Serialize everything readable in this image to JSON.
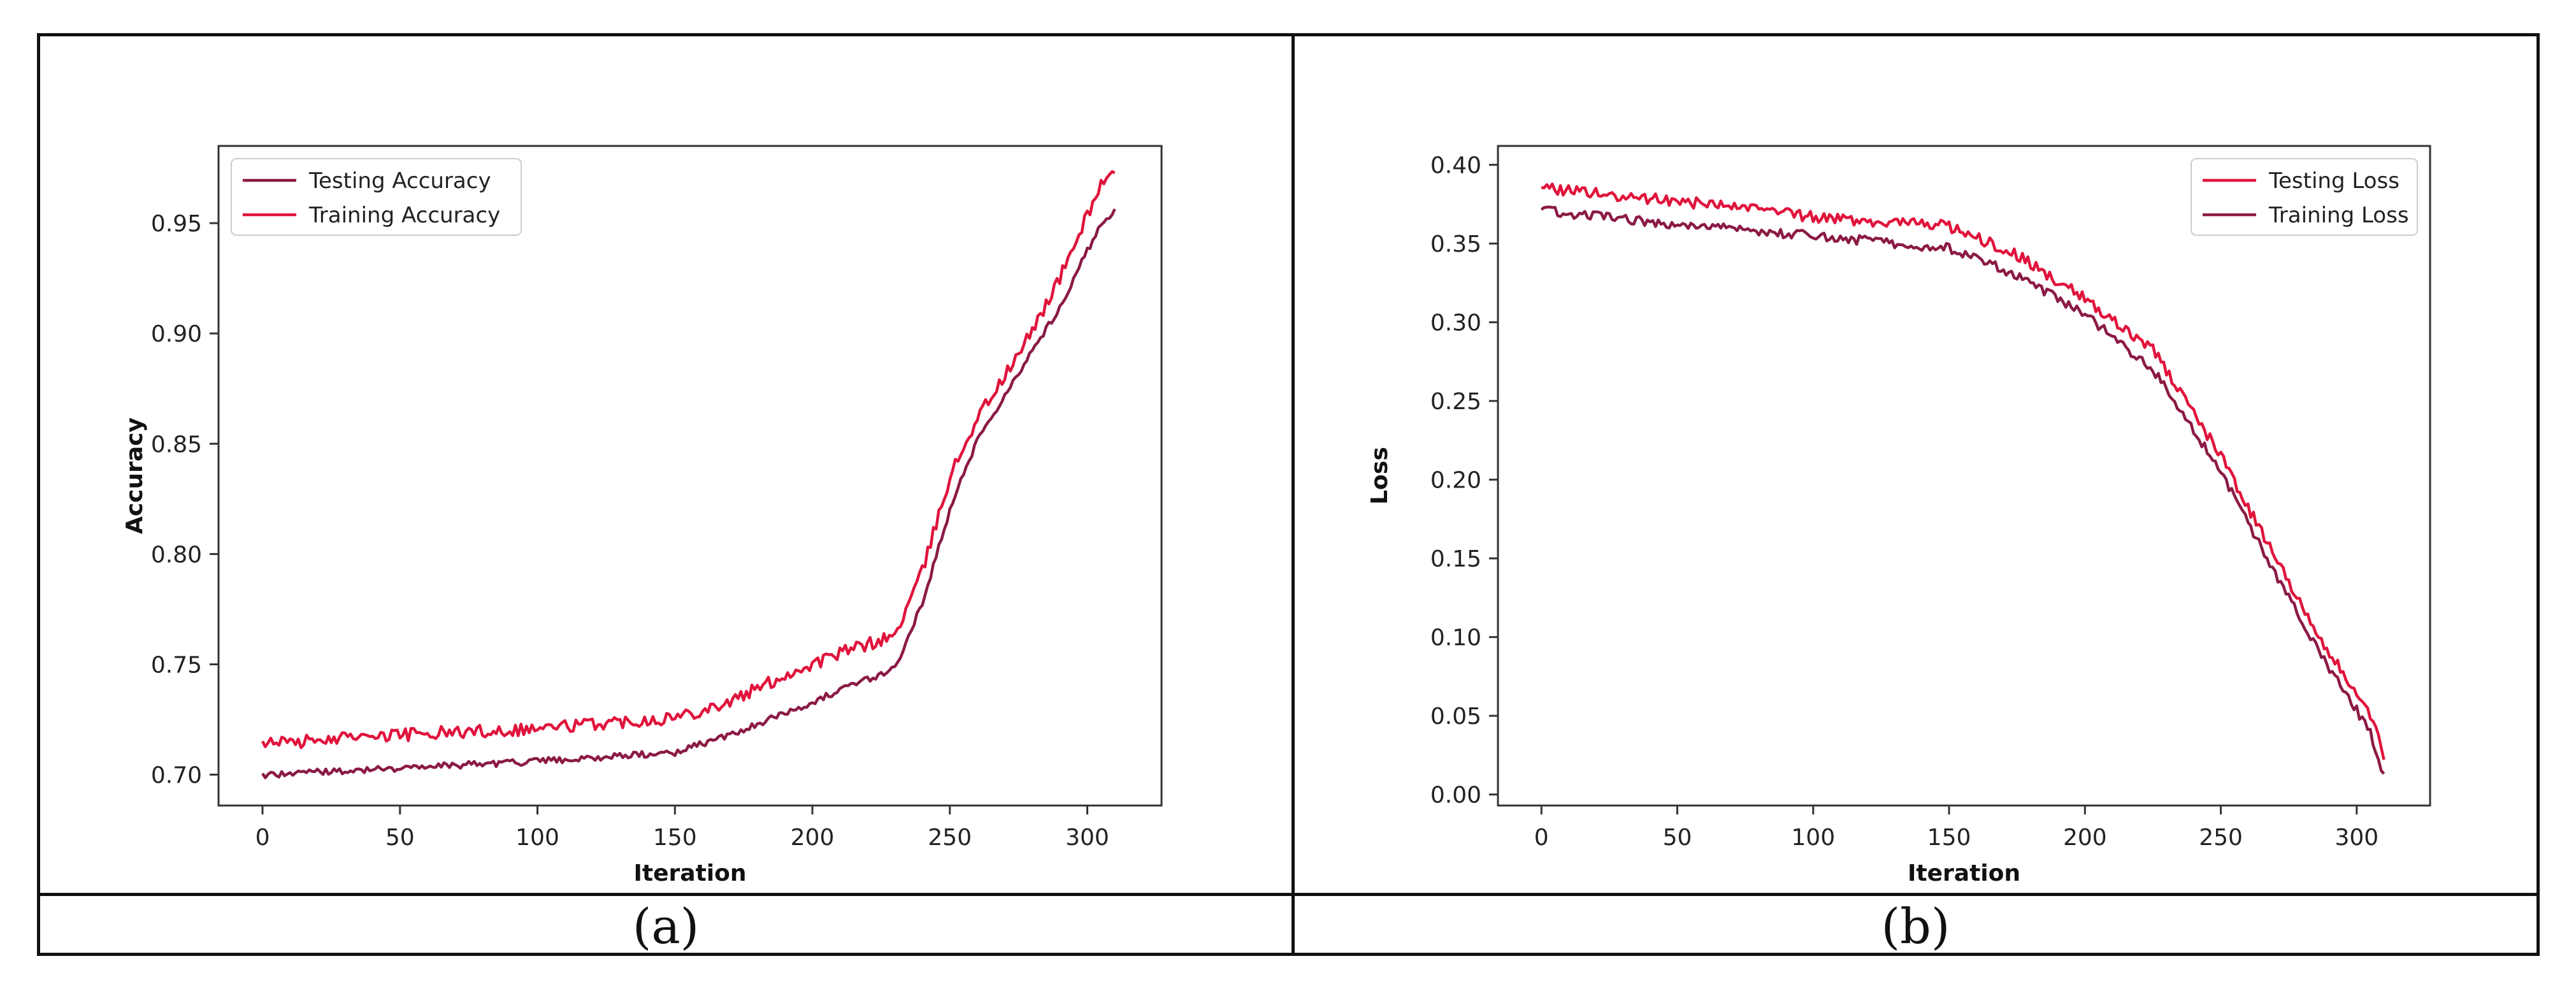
{
  "captions": [
    "(a)",
    "(b)"
  ],
  "chart_data": [
    {
      "type": "line",
      "title": "",
      "xlabel": "Iteration",
      "ylabel": "Accuracy",
      "xlim": [
        -16,
        327
      ],
      "ylim": [
        0.686,
        0.985
      ],
      "xticks": [
        0,
        50,
        100,
        150,
        200,
        250,
        300
      ],
      "yticks": [
        0.7,
        0.75,
        0.8,
        0.85,
        0.9,
        0.95
      ],
      "ytick_labels": [
        "0.70",
        "0.75",
        "0.80",
        "0.85",
        "0.90",
        "0.95"
      ],
      "legend_position": "upper-left",
      "series": [
        {
          "name": "Testing Accuracy",
          "color": "#8b1a46",
          "points": [
            [
              0,
              0.7
            ],
            [
              50,
              0.703
            ],
            [
              100,
              0.706
            ],
            [
              150,
              0.71
            ],
            [
              170,
              0.718
            ],
            [
              190,
              0.728
            ],
            [
              210,
              0.738
            ],
            [
              230,
              0.748
            ],
            [
              240,
              0.778
            ],
            [
              250,
              0.82
            ],
            [
              260,
              0.852
            ],
            [
              275,
              0.882
            ],
            [
              290,
              0.912
            ],
            [
              305,
              0.95
            ],
            [
              310,
              0.955
            ]
          ],
          "noise": 0.0015
        },
        {
          "name": "Training Accuracy",
          "color": "#e0143c",
          "points": [
            [
              0,
              0.714
            ],
            [
              50,
              0.718
            ],
            [
              100,
              0.721
            ],
            [
              150,
              0.726
            ],
            [
              170,
              0.733
            ],
            [
              190,
              0.745
            ],
            [
              210,
              0.755
            ],
            [
              230,
              0.763
            ],
            [
              240,
              0.792
            ],
            [
              250,
              0.835
            ],
            [
              260,
              0.862
            ],
            [
              275,
              0.89
            ],
            [
              290,
              0.925
            ],
            [
              305,
              0.968
            ],
            [
              310,
              0.972
            ]
          ],
          "noise": 0.003
        }
      ]
    },
    {
      "type": "line",
      "title": "",
      "xlabel": "Iteration",
      "ylabel": "Loss",
      "xlim": [
        -16,
        327
      ],
      "ylim": [
        -0.007,
        0.412
      ],
      "xticks": [
        0,
        50,
        100,
        150,
        200,
        250,
        300
      ],
      "yticks": [
        0.0,
        0.05,
        0.1,
        0.15,
        0.2,
        0.25,
        0.3,
        0.35,
        0.4
      ],
      "ytick_labels": [
        "0.00",
        "0.05",
        "0.10",
        "0.15",
        "0.20",
        "0.25",
        "0.30",
        "0.35",
        "0.40"
      ],
      "legend_position": "upper-right",
      "series": [
        {
          "name": "Testing Loss",
          "color": "#e0143c",
          "points": [
            [
              0,
              0.385
            ],
            [
              50,
              0.377
            ],
            [
              100,
              0.367
            ],
            [
              150,
              0.361
            ],
            [
              175,
              0.343
            ],
            [
              200,
              0.315
            ],
            [
              225,
              0.283
            ],
            [
              250,
              0.215
            ],
            [
              270,
              0.15
            ],
            [
              290,
              0.09
            ],
            [
              305,
              0.05
            ],
            [
              310,
              0.025
            ]
          ],
          "noise": 0.0035
        },
        {
          "name": "Training Loss",
          "color": "#8b1a46",
          "points": [
            [
              0,
              0.371
            ],
            [
              50,
              0.362
            ],
            [
              100,
              0.355
            ],
            [
              150,
              0.347
            ],
            [
              175,
              0.33
            ],
            [
              200,
              0.305
            ],
            [
              225,
              0.27
            ],
            [
              250,
              0.205
            ],
            [
              270,
              0.14
            ],
            [
              290,
              0.08
            ],
            [
              305,
              0.04
            ],
            [
              310,
              0.012
            ]
          ],
          "noise": 0.003
        }
      ]
    }
  ]
}
